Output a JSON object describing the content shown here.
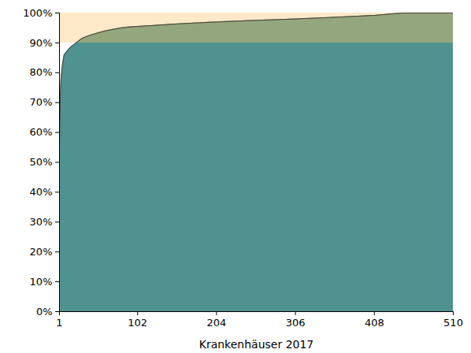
{
  "chart_data": {
    "type": "area",
    "x_label": "Krankenhäuser 2017",
    "x": [
      1,
      2,
      3,
      5,
      7,
      10,
      15,
      20,
      25,
      30,
      40,
      50,
      60,
      70,
      80,
      90,
      102,
      120,
      150,
      180,
      204,
      250,
      306,
      350,
      408,
      430,
      444,
      510
    ],
    "values": [
      55,
      72,
      78,
      83,
      86,
      87,
      88.5,
      89.5,
      90.5,
      91.5,
      92.5,
      93.3,
      94,
      94.5,
      95,
      95.3,
      95.5,
      95.8,
      96.3,
      96.7,
      97,
      97.5,
      98,
      98.5,
      99.2,
      99.7,
      100,
      100
    ],
    "threshold": 90,
    "colors": [
      "#4f9290",
      "#93a67c",
      "#fde8c8"
    ],
    "color": "#4a3b32",
    "xlim": [
      1,
      510
    ],
    "xticks": [
      1,
      102,
      204,
      306,
      408,
      510
    ],
    "ylim": [
      0,
      100
    ],
    "yticks": [
      {
        "value": 0,
        "label": "0%"
      },
      {
        "value": 10,
        "label": "10%"
      },
      {
        "value": 20,
        "label": "20%"
      },
      {
        "value": 30,
        "label": "30%"
      },
      {
        "value": 40,
        "label": "40%"
      },
      {
        "value": 50,
        "label": "50%"
      },
      {
        "value": 60,
        "label": "60%"
      },
      {
        "value": 70,
        "label": "70%"
      },
      {
        "value": 80,
        "label": "80%"
      },
      {
        "value": 90,
        "label": "90%"
      },
      {
        "value": 100,
        "label": "100%"
      }
    ],
    "grid": false
  }
}
